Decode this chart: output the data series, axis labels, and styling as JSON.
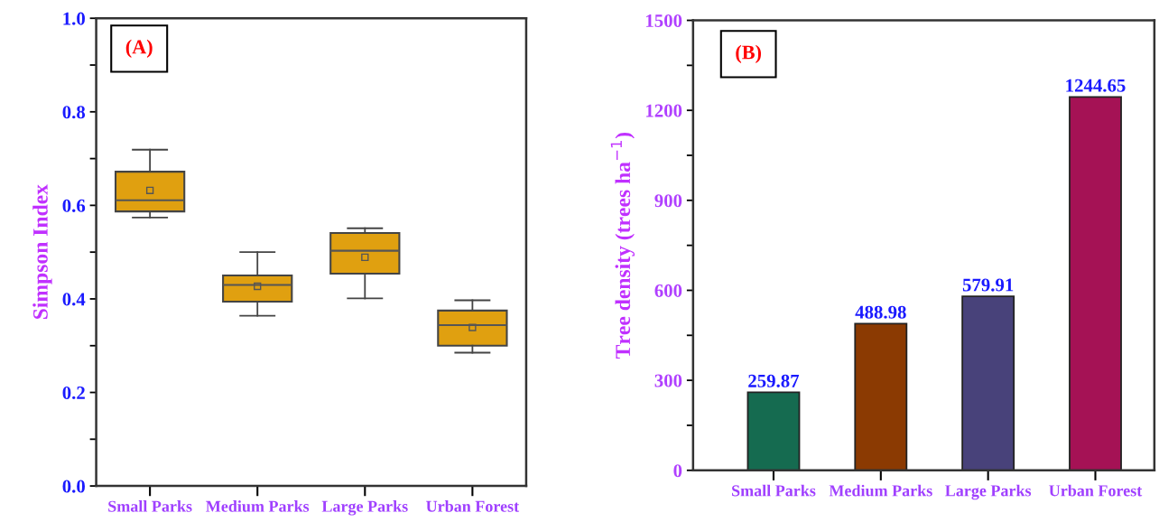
{
  "chart_data": [
    {
      "type": "box",
      "ylabel": "Simpson Index",
      "annotations": [
        "(A)"
      ],
      "categories": [
        "Small Parks",
        "Medium Parks",
        "Large Parks",
        "Urban Forest"
      ],
      "series": [
        {
          "color": "#e0a010",
          "boxes": [
            {
              "low": 0.574,
              "q1": 0.587,
              "median": 0.611,
              "q3": 0.672,
              "high": 0.719,
              "mean": 0.632
            },
            {
              "low": 0.364,
              "q1": 0.394,
              "median": 0.43,
              "q3": 0.45,
              "high": 0.5,
              "mean": 0.427
            },
            {
              "low": 0.401,
              "q1": 0.454,
              "median": 0.503,
              "q3": 0.541,
              "high": 0.551,
              "mean": 0.489
            },
            {
              "low": 0.285,
              "q1": 0.3,
              "median": 0.344,
              "q3": 0.375,
              "high": 0.397,
              "mean": 0.339
            }
          ]
        }
      ],
      "ylim": [
        0,
        1
      ],
      "yticks": [
        {
          "value": 0,
          "label": "0.0"
        },
        {
          "value": 0.1,
          "label": null
        },
        {
          "value": 0.2,
          "label": "0.2"
        },
        {
          "value": 0.3,
          "label": null
        },
        {
          "value": 0.4,
          "label": "0.4"
        },
        {
          "value": 0.5,
          "label": null
        },
        {
          "value": 0.6,
          "label": "0.6"
        },
        {
          "value": 0.7,
          "label": null
        },
        {
          "value": 0.8,
          "label": "0.8"
        },
        {
          "value": 0.9,
          "label": null
        },
        {
          "value": 1,
          "label": "1.0"
        }
      ],
      "grid": false,
      "legend": false
    },
    {
      "type": "bar",
      "ylabel": "Tree density (trees ha$^{−1}$)",
      "annotations": [
        "(B)"
      ],
      "categories": [
        "Small Parks",
        "Medium Parks",
        "Large Parks",
        "Urban Forest"
      ],
      "values": [
        259.87,
        488.98,
        579.91,
        1244.65
      ],
      "colors": [
        "#156b50",
        "#8b3a02",
        "#48427a",
        "#a51255"
      ],
      "data_labels": true,
      "ylim": [
        0,
        1500
      ],
      "yticks": [
        0,
        {
          "value": 150,
          "label": null
        },
        300,
        {
          "value": 450,
          "label": null
        },
        600,
        {
          "value": 750,
          "label": null
        },
        900,
        {
          "value": 1050,
          "label": null
        },
        1200,
        {
          "value": 1350,
          "label": null
        },
        1500
      ],
      "grid": false,
      "legend": false
    }
  ]
}
